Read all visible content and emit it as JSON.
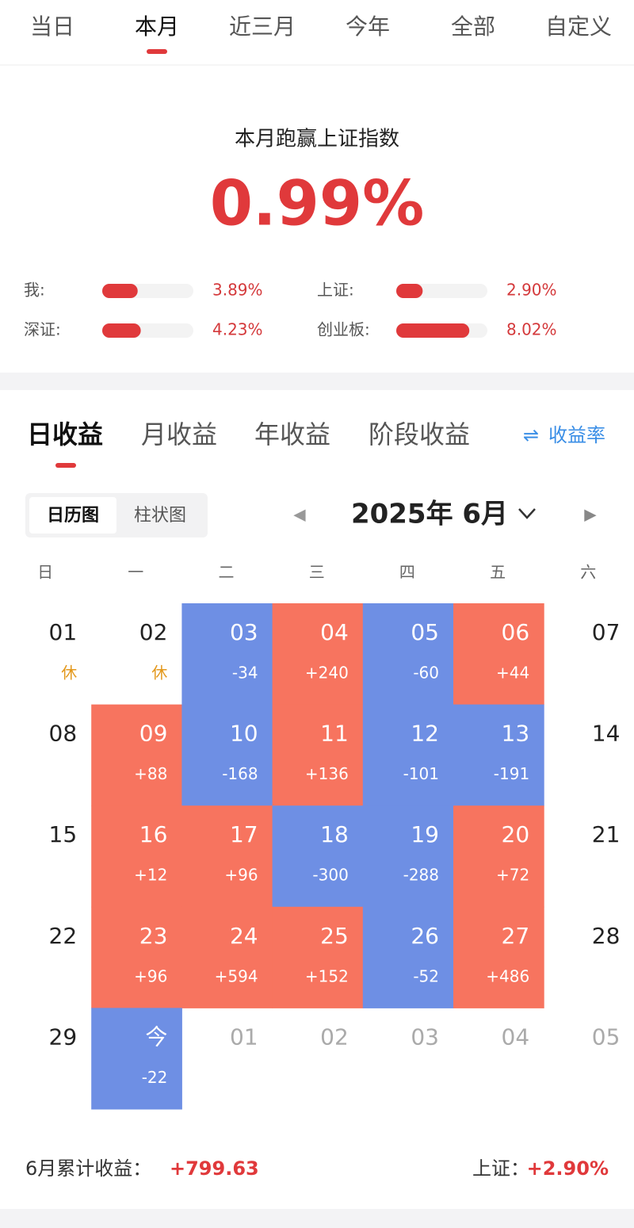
{
  "top_tabs": [
    {
      "label": "当日"
    },
    {
      "label": "本月",
      "active": true
    },
    {
      "label": "近三月"
    },
    {
      "label": "今年"
    },
    {
      "label": "全部"
    },
    {
      "label": "自定义"
    }
  ],
  "summary": {
    "title": "本月跑赢上证指数",
    "value": "0.99%"
  },
  "comparison": {
    "xlim": [
      0,
      10
    ],
    "rows": [
      {
        "label": "我:",
        "value": 3.89,
        "value_label": "3.89%"
      },
      {
        "label": "上证:",
        "value": 2.9,
        "value_label": "2.90%"
      },
      {
        "label": "深证:",
        "value": 4.23,
        "value_label": "4.23%"
      },
      {
        "label": "创业板:",
        "value": 8.02,
        "value_label": "8.02%"
      }
    ]
  },
  "income_tabs": [
    {
      "label": "日收益",
      "active": true
    },
    {
      "label": "月收益"
    },
    {
      "label": "年收益"
    },
    {
      "label": "阶段收益"
    }
  ],
  "rate_link": "收益率",
  "view_toggle": [
    {
      "label": "日历图",
      "active": true
    },
    {
      "label": "柱状图"
    }
  ],
  "month": "2025年 6月",
  "weekdays": [
    "日",
    "一",
    "二",
    "三",
    "四",
    "五",
    "六"
  ],
  "colors": {
    "gain": "#f7745f",
    "loss": "#6e8fe4"
  },
  "calendar": [
    [
      {
        "day": "01",
        "value": "休",
        "kind": "rest"
      },
      {
        "day": "02",
        "value": "休",
        "kind": "rest"
      },
      {
        "day": "03",
        "value": "-34",
        "kind": "loss"
      },
      {
        "day": "04",
        "value": "+240",
        "kind": "gain"
      },
      {
        "day": "05",
        "value": "-60",
        "kind": "loss"
      },
      {
        "day": "06",
        "value": "+44",
        "kind": "gain"
      },
      {
        "day": "07"
      }
    ],
    [
      {
        "day": "08"
      },
      {
        "day": "09",
        "value": "+88",
        "kind": "gain"
      },
      {
        "day": "10",
        "value": "-168",
        "kind": "loss"
      },
      {
        "day": "11",
        "value": "+136",
        "kind": "gain"
      },
      {
        "day": "12",
        "value": "-101",
        "kind": "loss"
      },
      {
        "day": "13",
        "value": "-191",
        "kind": "loss"
      },
      {
        "day": "14"
      }
    ],
    [
      {
        "day": "15"
      },
      {
        "day": "16",
        "value": "+12",
        "kind": "gain"
      },
      {
        "day": "17",
        "value": "+96",
        "kind": "gain"
      },
      {
        "day": "18",
        "value": "-300",
        "kind": "loss"
      },
      {
        "day": "19",
        "value": "-288",
        "kind": "loss"
      },
      {
        "day": "20",
        "value": "+72",
        "kind": "gain"
      },
      {
        "day": "21"
      }
    ],
    [
      {
        "day": "22"
      },
      {
        "day": "23",
        "value": "+96",
        "kind": "gain"
      },
      {
        "day": "24",
        "value": "+594",
        "kind": "gain"
      },
      {
        "day": "25",
        "value": "+152",
        "kind": "gain"
      },
      {
        "day": "26",
        "value": "-52",
        "kind": "loss"
      },
      {
        "day": "27",
        "value": "+486",
        "kind": "gain"
      },
      {
        "day": "28"
      }
    ],
    [
      {
        "day": "29"
      },
      {
        "day": "今",
        "value": "-22",
        "kind": "loss"
      },
      {
        "day": "01",
        "kind": "next"
      },
      {
        "day": "02",
        "kind": "next"
      },
      {
        "day": "03",
        "kind": "next"
      },
      {
        "day": "04",
        "kind": "next"
      },
      {
        "day": "05",
        "kind": "next"
      }
    ]
  ],
  "footer": {
    "total_label": "6月累计收益：",
    "total_value": "+799.63",
    "index_label": "上证：",
    "index_value": "+2.90%"
  }
}
